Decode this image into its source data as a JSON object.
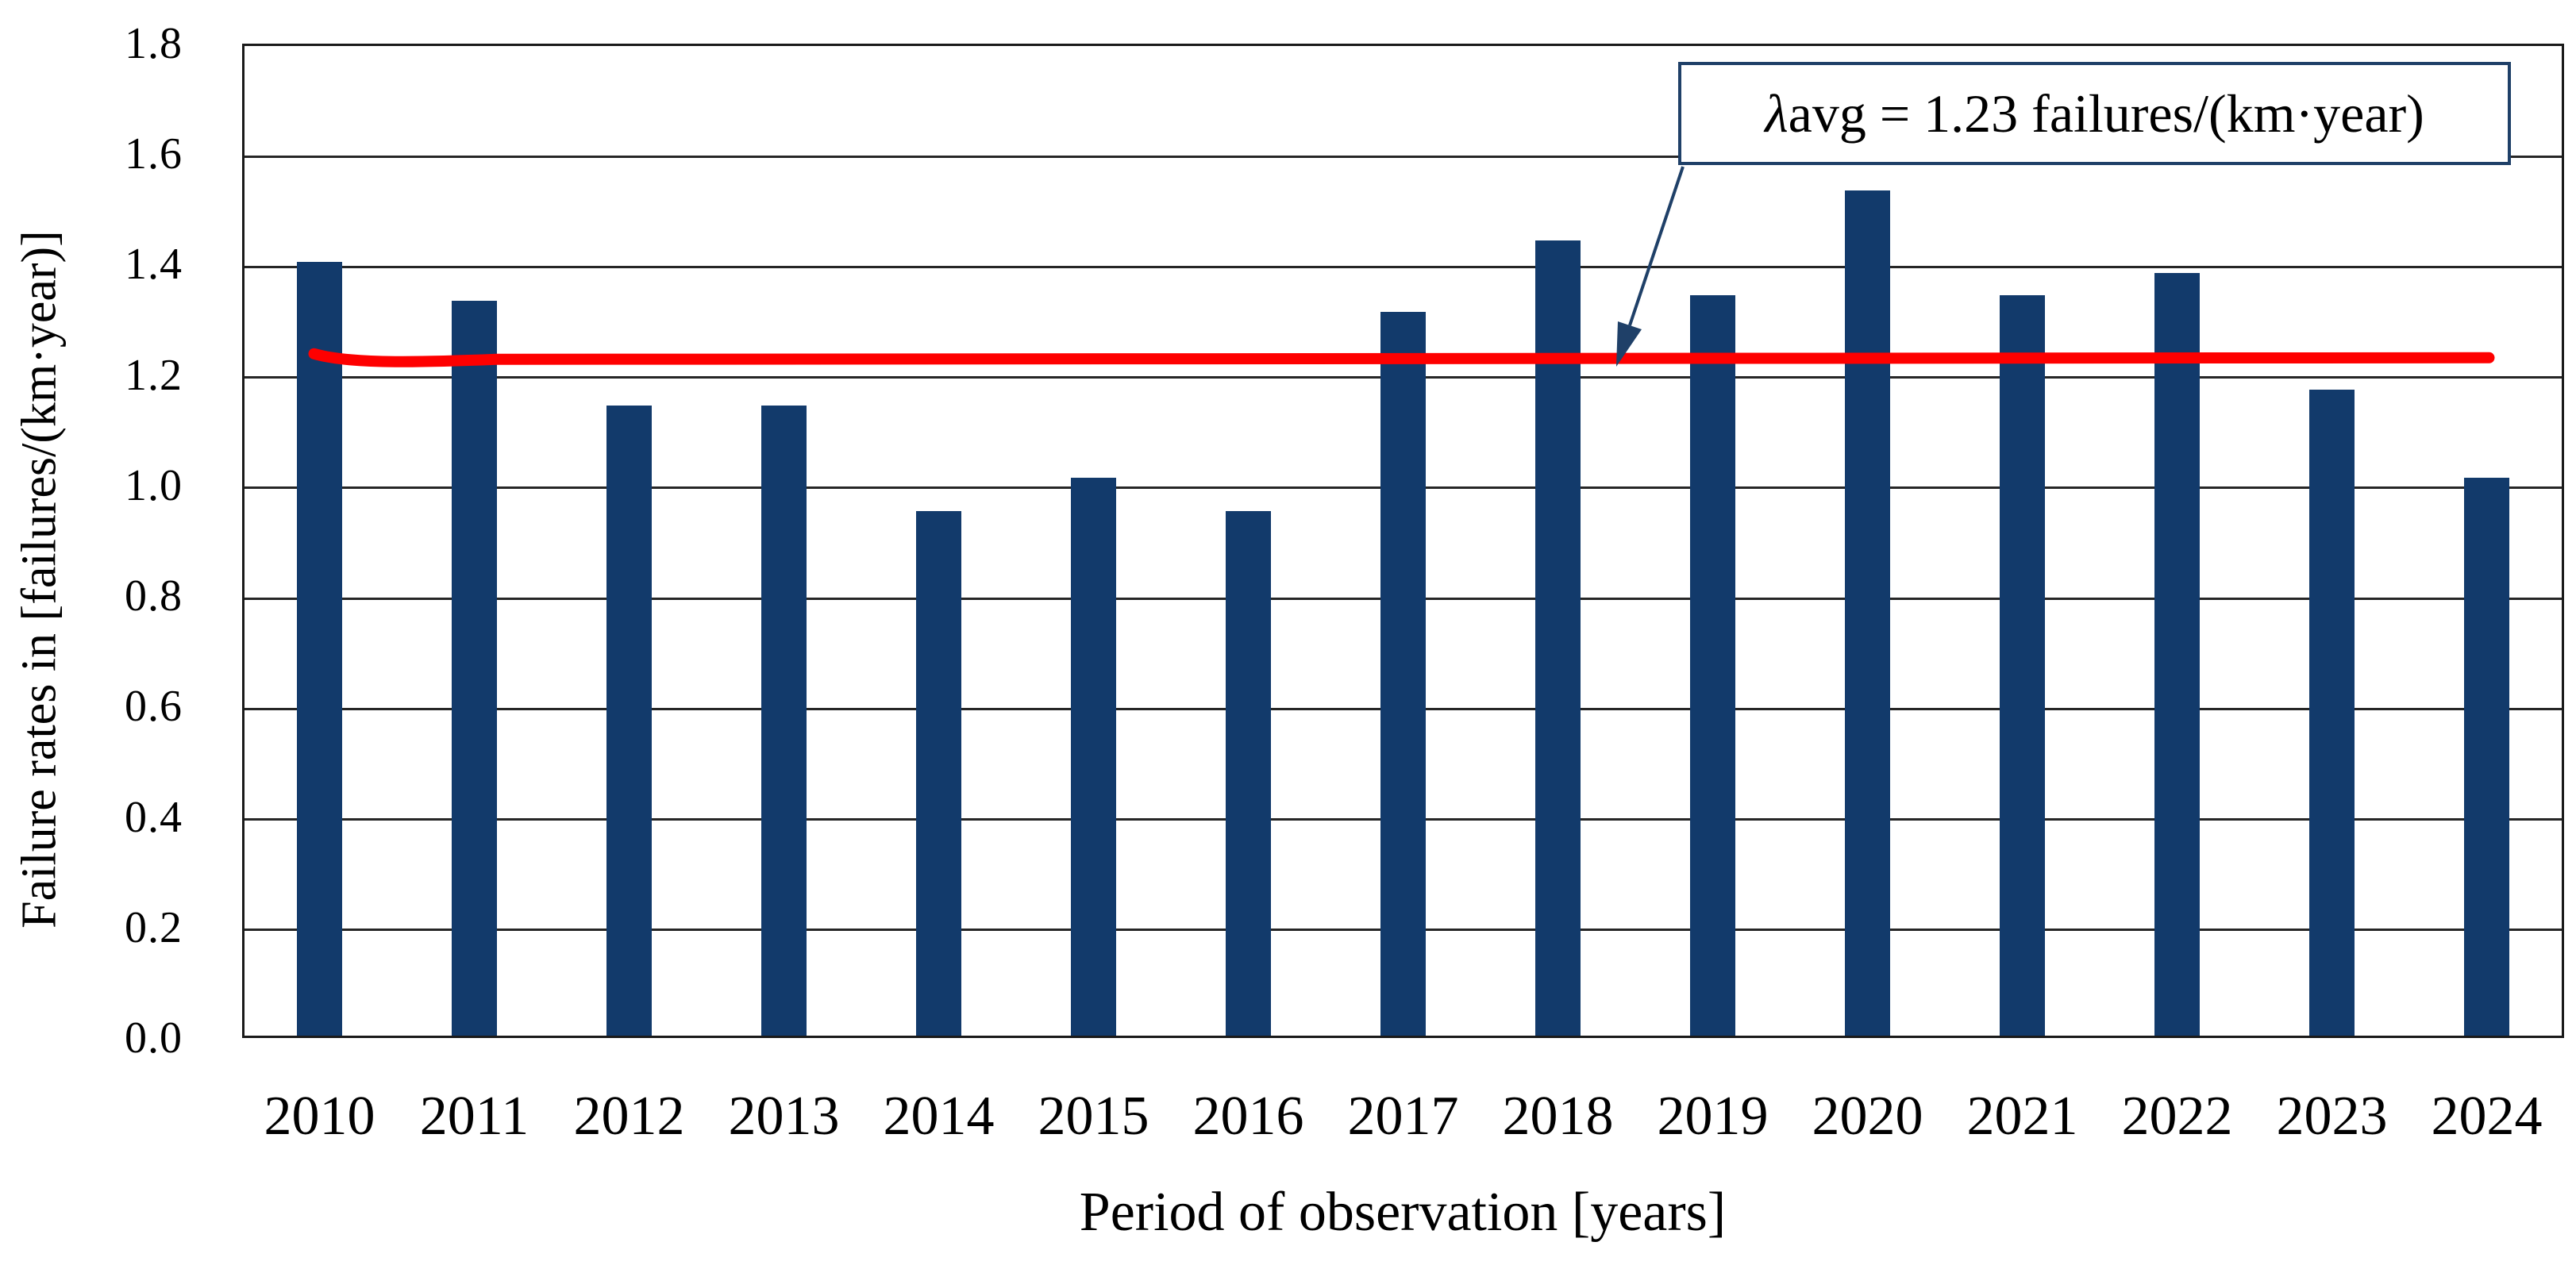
{
  "chart_data": {
    "type": "bar",
    "title": "",
    "categories": [
      "2010",
      "2011",
      "2012",
      "2013",
      "2014",
      "2015",
      "2016",
      "2017",
      "2018",
      "2019",
      "2020",
      "2021",
      "2022",
      "2023",
      "2024"
    ],
    "values": [
      1.4,
      1.33,
      1.14,
      1.14,
      0.95,
      1.01,
      0.95,
      1.31,
      1.44,
      1.34,
      1.53,
      1.34,
      1.38,
      1.17,
      1.01
    ],
    "xlabel": "Period of observation [years]",
    "ylabel": "Failure rates in [failures/(km·year)]",
    "ylim": [
      0,
      1.8
    ],
    "ytick_step": 0.2,
    "y_ticks": [
      "0.0",
      "0.2",
      "0.4",
      "0.6",
      "0.8",
      "1.0",
      "1.2",
      "1.4",
      "1.6",
      "1.8"
    ],
    "grid": "horizontal-solid",
    "legend_position": "none",
    "bar_color": "#123A6B",
    "gridline_color": "#262626",
    "average_line": {
      "value": 1.23,
      "color": "#FE0000",
      "annotation_lambda": "λ",
      "annotation_rest": "avg = 1.23 failures/(km·year)",
      "annotation_full": "λavg = 1.23 failures/(km·year)",
      "box_border_color": "#1F4068"
    }
  }
}
